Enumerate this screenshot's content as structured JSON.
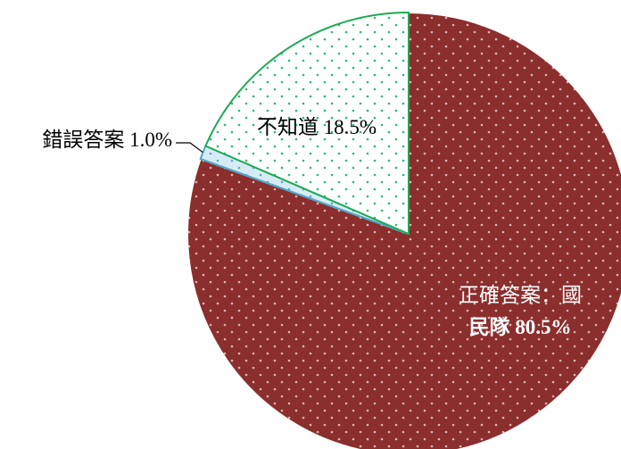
{
  "chart_data": {
    "type": "pie",
    "title": "",
    "slices": [
      {
        "label": "正確答案：國民隊",
        "value": 80.5,
        "label_lines": [
          "正確答案：國",
          "民隊 80.5%"
        ],
        "fill": "#8B2E2E",
        "dot": "#d9b8b0",
        "stroke": "#ffffff",
        "label_color": "#ffffff"
      },
      {
        "label": "錯誤答案",
        "value": 1.0,
        "label_lines": [
          "錯誤答案 1.0%"
        ],
        "fill": "#d6ecf5",
        "dot": "#5fa8c8",
        "stroke": "#4aa7c9",
        "label_color": "#000000"
      },
      {
        "label": "不知道",
        "value": 18.5,
        "label_lines": [
          "不知道 18.5%"
        ],
        "fill": "#ffffff",
        "dot": "#2eb872",
        "stroke": "#1faa55",
        "label_color": "#000000"
      }
    ]
  }
}
